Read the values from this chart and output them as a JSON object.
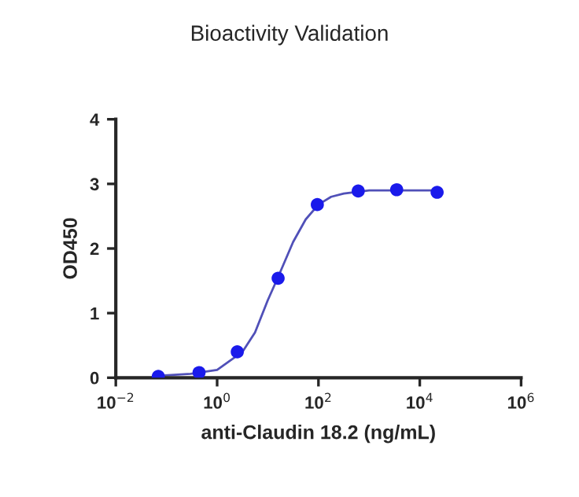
{
  "chart_data": {
    "type": "scatter",
    "title": "Bioactivity Validation",
    "xlabel": "anti-Claudin 18.2 (ng/mL)",
    "ylabel": "OD450",
    "log": "x",
    "grid": false,
    "marker": "circle",
    "xlim": [
      0.01,
      1000000
    ],
    "xticks": [
      {
        "value": 0.01,
        "label": "10$^{−2}$"
      },
      {
        "value": 1,
        "label": "10$^{0}$"
      },
      {
        "value": 100,
        "label": "10$^{2}$"
      },
      {
        "value": 10000,
        "label": "10$^{4}$"
      },
      {
        "value": 1000000,
        "label": "10$^{6}$"
      }
    ],
    "ylim": [
      0,
      4
    ],
    "yticks": [
      0,
      1,
      2,
      3,
      4
    ],
    "series": [
      {
        "type": "line",
        "marker": "none",
        "color": "#5050b8",
        "x": [
          0.069,
          0.3,
          1,
          3.16,
          5.6,
          10,
          15.8,
          31.6,
          56,
          100,
          178,
          316,
          1000,
          3500,
          22000
        ],
        "values": [
          0.03,
          0.06,
          0.12,
          0.4,
          0.7,
          1.2,
          1.55,
          2.1,
          2.45,
          2.68,
          2.8,
          2.85,
          2.9,
          2.9,
          2.9
        ]
      },
      {
        "color": "#1a1aeb",
        "x": [
          0.069,
          0.44,
          2.5,
          16,
          95,
          610,
          3500,
          22000
        ],
        "values": [
          0.02,
          0.08,
          0.4,
          1.54,
          2.68,
          2.89,
          2.91,
          2.87
        ]
      }
    ]
  }
}
